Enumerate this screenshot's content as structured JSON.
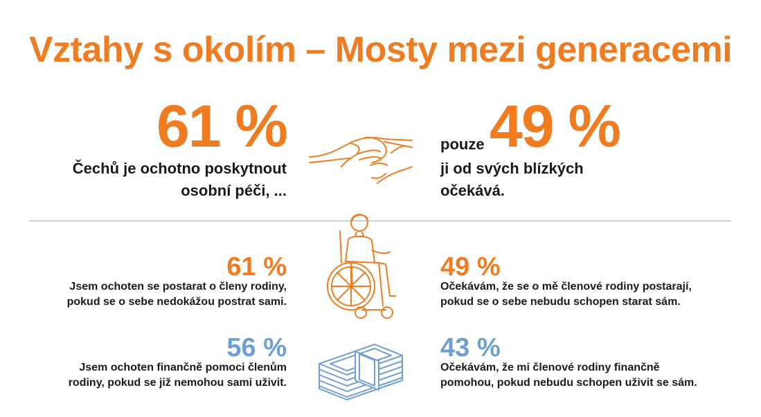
{
  "title": "Vztahy s okolím – Mosty mezi generacemi",
  "top": {
    "left_value": "61 %",
    "left_text": "Čechů je ochotno poskytnout osobní péči, ...",
    "right_prefix": "pouze",
    "right_value": "49 %",
    "right_text": "ji od svých blízkých očekává."
  },
  "rows": [
    {
      "left_value": "61 %",
      "left_text": "Jsem ochoten se postarat o členy rodiny, pokud se o sebe nedokážou postrat sami.",
      "right_value": "49 %",
      "right_text": "Očekávám, že se o mě členové rodiny postarají, pokud se o sebe nebudu schopen starat sám.",
      "icon": "wheelchair-icon"
    },
    {
      "left_value": "56 %",
      "left_text": "Jsem ochoten finančně pomoci členům rodiny, pokud se již nemohou sami uživit.",
      "right_value": "43 %",
      "right_text": "Očekávám, že mi členové rodiny finančně pomohou, pokud nebudu schopen uživit se sám.",
      "icon": "money-stack-icon"
    }
  ],
  "icons": {
    "top": "holding-hands-icon"
  },
  "colors": {
    "accent": "#f07c22",
    "blue": "#6e9ed2",
    "text": "#1a1a1a"
  }
}
